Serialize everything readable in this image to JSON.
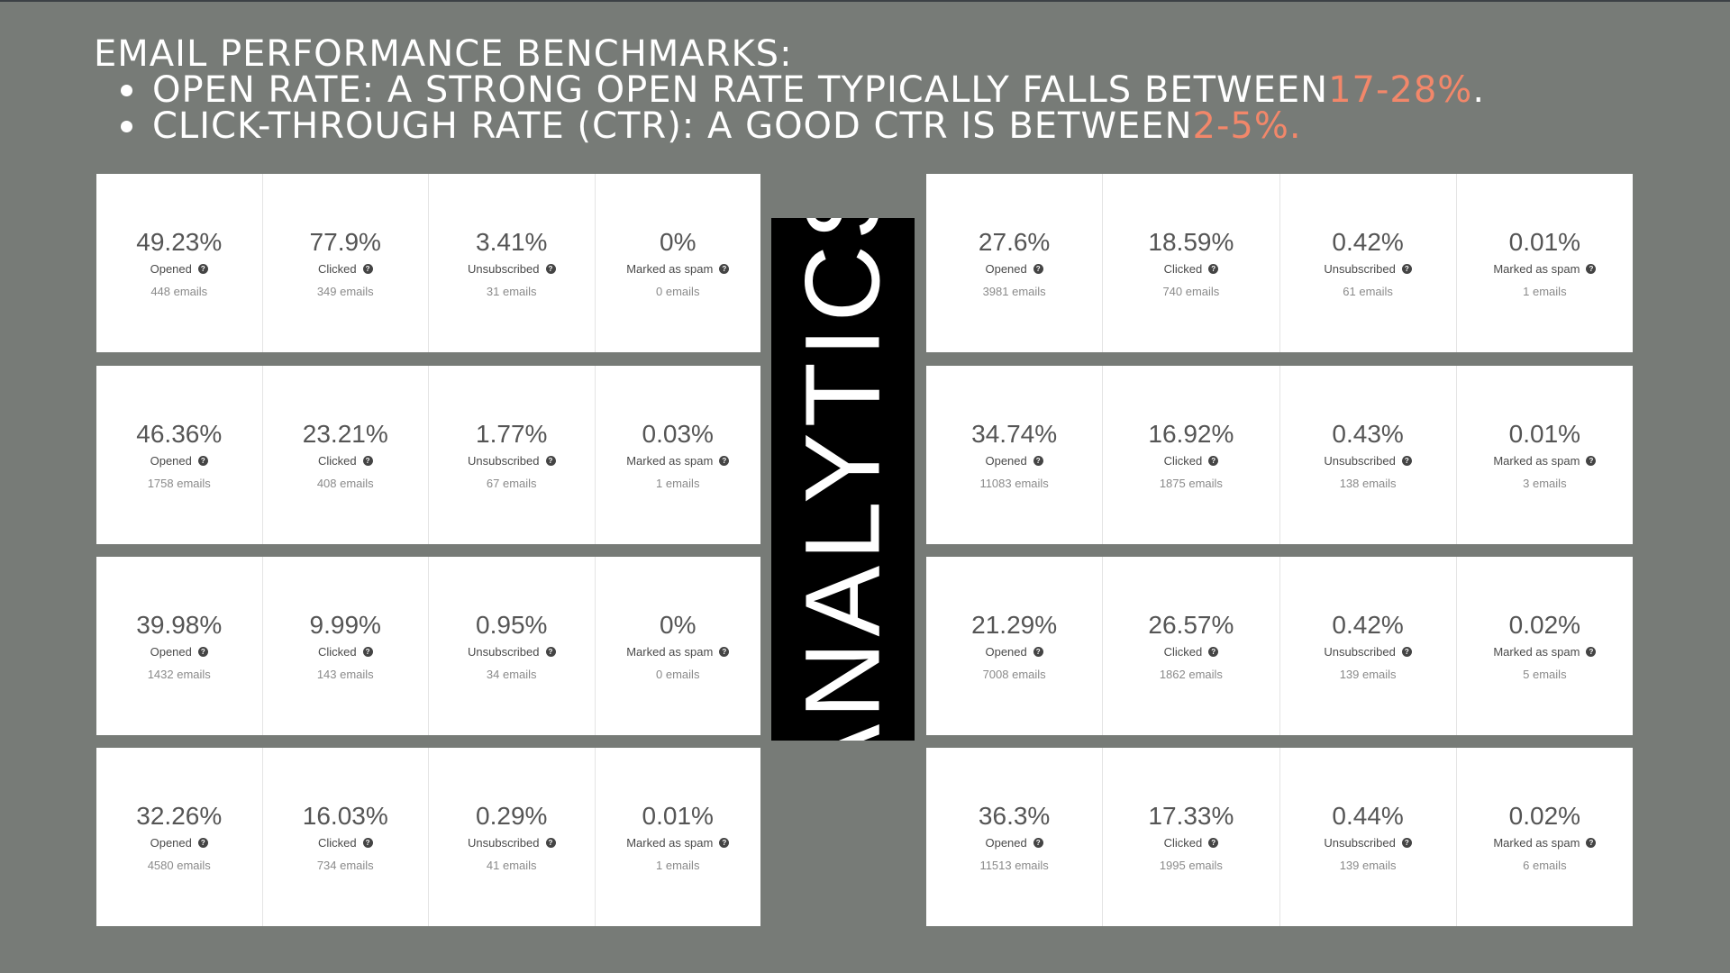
{
  "header": {
    "title": "EMAIL PERFORMANCE BENCHMARKS:",
    "bullets": [
      {
        "text": "OPEN RATE: A STRONG OPEN RATE TYPICALLY FALLS BETWEEN ",
        "highlight": "17-28%",
        "suffix": "."
      },
      {
        "text": "CLICK-THROUGH RATE (CTR): A GOOD CTR IS BETWEEN ",
        "highlight": "2-5%.",
        "suffix": ""
      }
    ]
  },
  "center_label": "ANALYTICS",
  "help_glyph": "?",
  "colors": {
    "background": "#777b77",
    "accent": "#f2876a",
    "card": "#ffffff",
    "label_box": "#000000"
  },
  "reports_left": [
    {
      "metrics": [
        {
          "value": "49.23%",
          "label": "Opened",
          "count": "448 emails"
        },
        {
          "value": "77.9%",
          "label": "Clicked",
          "count": "349 emails"
        },
        {
          "value": "3.41%",
          "label": "Unsubscribed",
          "count": "31 emails"
        },
        {
          "value": "0%",
          "label": "Marked as spam",
          "count": "0 emails"
        }
      ]
    },
    {
      "metrics": [
        {
          "value": "46.36%",
          "label": "Opened",
          "count": "1758 emails"
        },
        {
          "value": "23.21%",
          "label": "Clicked",
          "count": "408 emails"
        },
        {
          "value": "1.77%",
          "label": "Unsubscribed",
          "count": "67 emails"
        },
        {
          "value": "0.03%",
          "label": "Marked as spam",
          "count": "1 emails"
        }
      ]
    },
    {
      "metrics": [
        {
          "value": "39.98%",
          "label": "Opened",
          "count": "1432 emails"
        },
        {
          "value": "9.99%",
          "label": "Clicked",
          "count": "143 emails"
        },
        {
          "value": "0.95%",
          "label": "Unsubscribed",
          "count": "34 emails"
        },
        {
          "value": "0%",
          "label": "Marked as spam",
          "count": "0 emails"
        }
      ]
    },
    {
      "metrics": [
        {
          "value": "32.26%",
          "label": "Opened",
          "count": "4580 emails"
        },
        {
          "value": "16.03%",
          "label": "Clicked",
          "count": "734 emails"
        },
        {
          "value": "0.29%",
          "label": "Unsubscribed",
          "count": "41 emails"
        },
        {
          "value": "0.01%",
          "label": "Marked as spam",
          "count": "1 emails"
        }
      ]
    }
  ],
  "reports_right": [
    {
      "metrics": [
        {
          "value": "27.6%",
          "label": "Opened",
          "count": "3981 emails"
        },
        {
          "value": "18.59%",
          "label": "Clicked",
          "count": "740 emails"
        },
        {
          "value": "0.42%",
          "label": "Unsubscribed",
          "count": "61 emails"
        },
        {
          "value": "0.01%",
          "label": "Marked as spam",
          "count": "1 emails"
        }
      ]
    },
    {
      "metrics": [
        {
          "value": "34.74%",
          "label": "Opened",
          "count": "11083 emails"
        },
        {
          "value": "16.92%",
          "label": "Clicked",
          "count": "1875 emails"
        },
        {
          "value": "0.43%",
          "label": "Unsubscribed",
          "count": "138 emails"
        },
        {
          "value": "0.01%",
          "label": "Marked as spam",
          "count": "3 emails"
        }
      ]
    },
    {
      "metrics": [
        {
          "value": "21.29%",
          "label": "Opened",
          "count": "7008 emails"
        },
        {
          "value": "26.57%",
          "label": "Clicked",
          "count": "1862 emails"
        },
        {
          "value": "0.42%",
          "label": "Unsubscribed",
          "count": "139 emails"
        },
        {
          "value": "0.02%",
          "label": "Marked as spam",
          "count": "5 emails"
        }
      ]
    },
    {
      "metrics": [
        {
          "value": "36.3%",
          "label": "Opened",
          "count": "11513 emails"
        },
        {
          "value": "17.33%",
          "label": "Clicked",
          "count": "1995 emails"
        },
        {
          "value": "0.44%",
          "label": "Unsubscribed",
          "count": "139 emails"
        },
        {
          "value": "0.02%",
          "label": "Marked as spam",
          "count": "6 emails"
        }
      ]
    }
  ]
}
